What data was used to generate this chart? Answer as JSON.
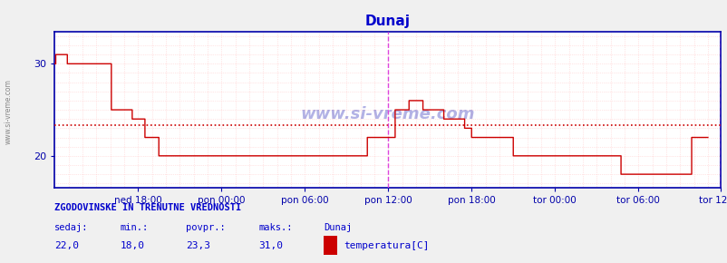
{
  "title": "Dunaj",
  "title_color": "#0000cc",
  "bg_color": "#f0f0f0",
  "plot_bg_color": "#ffffff",
  "grid_color": "#ffcccc",
  "axis_color": "#0000aa",
  "line_color": "#cc0000",
  "avg_line_color": "#cc0000",
  "vline_color": "#dd44dd",
  "watermark": "www.si-vreme.com",
  "watermark_color": "#0000aa",
  "yticks": [
    20,
    30
  ],
  "ylim": [
    16.5,
    33.5
  ],
  "xlim": [
    0,
    575
  ],
  "tick_labels": [
    "ned 18:00",
    "pon 00:00",
    "pon 06:00",
    "pon 12:00",
    "pon 18:00",
    "tor 00:00",
    "tor 06:00",
    "tor 12:00"
  ],
  "tick_positions": [
    72,
    144,
    216,
    288,
    360,
    432,
    504,
    575
  ],
  "vline_positions": [
    288,
    575
  ],
  "avg_value": 23.3,
  "stats_label": "ZGODOVINSKE IN TRENUTNE VREDNOSTI",
  "stats_color": "#0000cc",
  "stat_sedaj": "22,0",
  "stat_min": "18,0",
  "stat_povpr": "23,3",
  "stat_maks": "31,0",
  "legend_label": "temperatura[C]",
  "legend_color": "#cc0000",
  "temperature_data": [
    30,
    31,
    31,
    31,
    31,
    31,
    31,
    31,
    31,
    31,
    31,
    30,
    30,
    30,
    30,
    30,
    30,
    30,
    30,
    30,
    30,
    30,
    30,
    30,
    30,
    30,
    30,
    30,
    30,
    30,
    30,
    30,
    30,
    30,
    30,
    30,
    30,
    30,
    30,
    30,
    30,
    30,
    30,
    30,
    30,
    30,
    30,
    30,
    30,
    25,
    25,
    25,
    25,
    25,
    25,
    25,
    25,
    25,
    25,
    25,
    25,
    25,
    25,
    25,
    25,
    25,
    25,
    24,
    24,
    24,
    24,
    24,
    24,
    24,
    24,
    24,
    24,
    24,
    22,
    22,
    22,
    22,
    22,
    22,
    22,
    22,
    22,
    22,
    22,
    22,
    20,
    20,
    20,
    20,
    20,
    20,
    20,
    20,
    20,
    20,
    20,
    20,
    20,
    20,
    20,
    20,
    20,
    20,
    20,
    20,
    20,
    20,
    20,
    20,
    20,
    20,
    20,
    20,
    20,
    20,
    20,
    20,
    20,
    20,
    20,
    20,
    20,
    20,
    20,
    20,
    20,
    20,
    20,
    20,
    20,
    20,
    20,
    20,
    20,
    20,
    20,
    20,
    20,
    20,
    20,
    20,
    20,
    20,
    20,
    20,
    20,
    20,
    20,
    20,
    20,
    20,
    20,
    20,
    20,
    20,
    20,
    20,
    20,
    20,
    20,
    20,
    20,
    20,
    20,
    20,
    20,
    20,
    20,
    20,
    20,
    20,
    20,
    20,
    20,
    20,
    20,
    20,
    20,
    20,
    20,
    20,
    20,
    20,
    20,
    20,
    20,
    20,
    20,
    20,
    20,
    20,
    20,
    20,
    20,
    20,
    20,
    20,
    20,
    20,
    20,
    20,
    20,
    20,
    20,
    20,
    20,
    20,
    20,
    20,
    20,
    20,
    20,
    20,
    20,
    20,
    20,
    20,
    20,
    20,
    20,
    20,
    20,
    20,
    20,
    20,
    20,
    20,
    20,
    20,
    20,
    20,
    20,
    20,
    20,
    20,
    20,
    20,
    20,
    20,
    20,
    20,
    20,
    20,
    20,
    20,
    20,
    20,
    20,
    20,
    20,
    20,
    20,
    20,
    20,
    20,
    20,
    20,
    20,
    20,
    20,
    20,
    20,
    20,
    20,
    20,
    22,
    22,
    22,
    22,
    22,
    22,
    22,
    22,
    22,
    22,
    22,
    22,
    22,
    22,
    22,
    22,
    22,
    22,
    22,
    22,
    22,
    22,
    22,
    22,
    25,
    25,
    25,
    25,
    25,
    25,
    25,
    25,
    25,
    25,
    25,
    25,
    26,
    26,
    26,
    26,
    26,
    26,
    26,
    26,
    26,
    26,
    26,
    26,
    25,
    25,
    25,
    25,
    25,
    25,
    25,
    25,
    25,
    25,
    25,
    25,
    25,
    25,
    25,
    25,
    25,
    25,
    24,
    24,
    24,
    24,
    24,
    24,
    24,
    24,
    24,
    24,
    24,
    24,
    24,
    24,
    24,
    24,
    24,
    24,
    23,
    23,
    23,
    23,
    23,
    23,
    22,
    22,
    22,
    22,
    22,
    22,
    22,
    22,
    22,
    22,
    22,
    22,
    22,
    22,
    22,
    22,
    22,
    22,
    22,
    22,
    22,
    22,
    22,
    22,
    22,
    22,
    22,
    22,
    22,
    22,
    22,
    22,
    22,
    22,
    22,
    22,
    20,
    20,
    20,
    20,
    20,
    20,
    20,
    20,
    20,
    20,
    20,
    20,
    20,
    20,
    20,
    20,
    20,
    20,
    20,
    20,
    20,
    20,
    20,
    20,
    20,
    20,
    20,
    20,
    20,
    20,
    20,
    20,
    20,
    20,
    20,
    20,
    20,
    20,
    20,
    20,
    20,
    20,
    20,
    20,
    20,
    20,
    20,
    20,
    20,
    20,
    20,
    20,
    20,
    20,
    20,
    20,
    20,
    20,
    20,
    20,
    20,
    20,
    20,
    20,
    20,
    20,
    20,
    20,
    20,
    20,
    20,
    20,
    20,
    20,
    20,
    20,
    20,
    20,
    20,
    20,
    20,
    20,
    20,
    20,
    20,
    20,
    20,
    20,
    20,
    20,
    20,
    20,
    20,
    18,
    18,
    18,
    18,
    18,
    18,
    18,
    18,
    18,
    18,
    18,
    18,
    18,
    18,
    18,
    18,
    18,
    18,
    18,
    18,
    18,
    18,
    18,
    18,
    18,
    18,
    18,
    18,
    18,
    18,
    18,
    18,
    18,
    18,
    18,
    18,
    18,
    18,
    18,
    18,
    18,
    18,
    18,
    18,
    18,
    18,
    18,
    18,
    18,
    18,
    18,
    18,
    18,
    18,
    18,
    18,
    18,
    18,
    18,
    18,
    18,
    22,
    22,
    22,
    22,
    22,
    22,
    22,
    22,
    22,
    22,
    22,
    22,
    22,
    22,
    22
  ]
}
